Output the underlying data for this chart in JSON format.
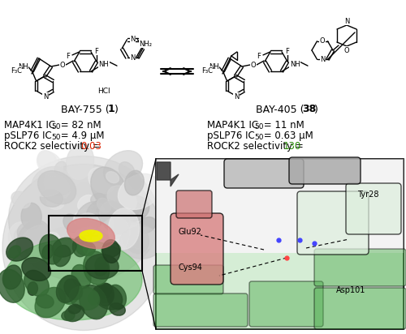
{
  "bg_color": "#ffffff",
  "text_color": "#000000",
  "compound1_name": "BAY-755",
  "compound1_num": "1",
  "compound2_name": "BAY-405",
  "compound2_num": "38",
  "hcl": "HCl",
  "stats_left": {
    "line1": "MAP4K1 IC",
    "line1_sub": "50",
    "line1_val": " = 82 nM",
    "line2": "pSLP76 IC",
    "line2_sub": "50",
    "line2_val": " = 4.9 μM",
    "line3_pre": "ROCK2 selectivity = ",
    "line3_val": "0.03",
    "line3_color": "#dd2200"
  },
  "stats_right": {
    "line1": "MAP4K1 IC",
    "line1_sub": "50",
    "line1_val": " = 11 nM",
    "line2": "pSLP76 IC",
    "line2_sub": "50",
    "line2_val": " = 0.63 μM",
    "line3_pre": "ROCK2 selectivity = ",
    "line3_val": "130",
    "line3_color": "#228800"
  },
  "protein_labels": {
    "tyr28": "Tyr28",
    "glu92": "Glu92",
    "cys94": "Cys94",
    "asp101": "Asp101"
  },
  "font_size_stat": 8.5,
  "font_size_name": 9,
  "font_size_atom": 6.0,
  "font_size_prot": 7.0
}
